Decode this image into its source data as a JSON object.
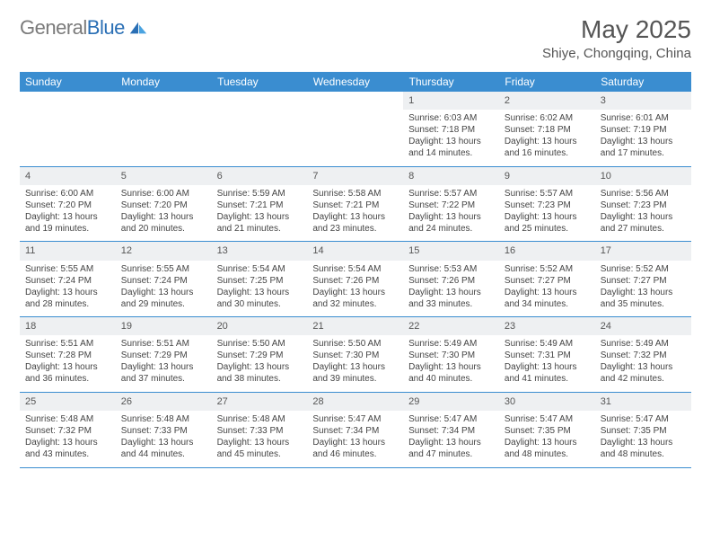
{
  "brand": {
    "text_gray": "General",
    "text_blue": "Blue"
  },
  "title": "May 2025",
  "subtitle": "Shiye, Chongqing, China",
  "colors": {
    "header_bg": "#3a8dd0",
    "header_text": "#ffffff",
    "daynum_bg": "#eef0f2",
    "border": "#3a8dd0",
    "text": "#444444",
    "logo_gray": "#7a7a7a",
    "logo_blue": "#2a6fb5"
  },
  "weekdays": [
    "Sunday",
    "Monday",
    "Tuesday",
    "Wednesday",
    "Thursday",
    "Friday",
    "Saturday"
  ],
  "leading_blanks": 4,
  "days": [
    {
      "n": 1,
      "sr": "6:03 AM",
      "ss": "7:18 PM",
      "dl": "13 hours and 14 minutes."
    },
    {
      "n": 2,
      "sr": "6:02 AM",
      "ss": "7:18 PM",
      "dl": "13 hours and 16 minutes."
    },
    {
      "n": 3,
      "sr": "6:01 AM",
      "ss": "7:19 PM",
      "dl": "13 hours and 17 minutes."
    },
    {
      "n": 4,
      "sr": "6:00 AM",
      "ss": "7:20 PM",
      "dl": "13 hours and 19 minutes."
    },
    {
      "n": 5,
      "sr": "6:00 AM",
      "ss": "7:20 PM",
      "dl": "13 hours and 20 minutes."
    },
    {
      "n": 6,
      "sr": "5:59 AM",
      "ss": "7:21 PM",
      "dl": "13 hours and 21 minutes."
    },
    {
      "n": 7,
      "sr": "5:58 AM",
      "ss": "7:21 PM",
      "dl": "13 hours and 23 minutes."
    },
    {
      "n": 8,
      "sr": "5:57 AM",
      "ss": "7:22 PM",
      "dl": "13 hours and 24 minutes."
    },
    {
      "n": 9,
      "sr": "5:57 AM",
      "ss": "7:23 PM",
      "dl": "13 hours and 25 minutes."
    },
    {
      "n": 10,
      "sr": "5:56 AM",
      "ss": "7:23 PM",
      "dl": "13 hours and 27 minutes."
    },
    {
      "n": 11,
      "sr": "5:55 AM",
      "ss": "7:24 PM",
      "dl": "13 hours and 28 minutes."
    },
    {
      "n": 12,
      "sr": "5:55 AM",
      "ss": "7:24 PM",
      "dl": "13 hours and 29 minutes."
    },
    {
      "n": 13,
      "sr": "5:54 AM",
      "ss": "7:25 PM",
      "dl": "13 hours and 30 minutes."
    },
    {
      "n": 14,
      "sr": "5:54 AM",
      "ss": "7:26 PM",
      "dl": "13 hours and 32 minutes."
    },
    {
      "n": 15,
      "sr": "5:53 AM",
      "ss": "7:26 PM",
      "dl": "13 hours and 33 minutes."
    },
    {
      "n": 16,
      "sr": "5:52 AM",
      "ss": "7:27 PM",
      "dl": "13 hours and 34 minutes."
    },
    {
      "n": 17,
      "sr": "5:52 AM",
      "ss": "7:27 PM",
      "dl": "13 hours and 35 minutes."
    },
    {
      "n": 18,
      "sr": "5:51 AM",
      "ss": "7:28 PM",
      "dl": "13 hours and 36 minutes."
    },
    {
      "n": 19,
      "sr": "5:51 AM",
      "ss": "7:29 PM",
      "dl": "13 hours and 37 minutes."
    },
    {
      "n": 20,
      "sr": "5:50 AM",
      "ss": "7:29 PM",
      "dl": "13 hours and 38 minutes."
    },
    {
      "n": 21,
      "sr": "5:50 AM",
      "ss": "7:30 PM",
      "dl": "13 hours and 39 minutes."
    },
    {
      "n": 22,
      "sr": "5:49 AM",
      "ss": "7:30 PM",
      "dl": "13 hours and 40 minutes."
    },
    {
      "n": 23,
      "sr": "5:49 AM",
      "ss": "7:31 PM",
      "dl": "13 hours and 41 minutes."
    },
    {
      "n": 24,
      "sr": "5:49 AM",
      "ss": "7:32 PM",
      "dl": "13 hours and 42 minutes."
    },
    {
      "n": 25,
      "sr": "5:48 AM",
      "ss": "7:32 PM",
      "dl": "13 hours and 43 minutes."
    },
    {
      "n": 26,
      "sr": "5:48 AM",
      "ss": "7:33 PM",
      "dl": "13 hours and 44 minutes."
    },
    {
      "n": 27,
      "sr": "5:48 AM",
      "ss": "7:33 PM",
      "dl": "13 hours and 45 minutes."
    },
    {
      "n": 28,
      "sr": "5:47 AM",
      "ss": "7:34 PM",
      "dl": "13 hours and 46 minutes."
    },
    {
      "n": 29,
      "sr": "5:47 AM",
      "ss": "7:34 PM",
      "dl": "13 hours and 47 minutes."
    },
    {
      "n": 30,
      "sr": "5:47 AM",
      "ss": "7:35 PM",
      "dl": "13 hours and 48 minutes."
    },
    {
      "n": 31,
      "sr": "5:47 AM",
      "ss": "7:35 PM",
      "dl": "13 hours and 48 minutes."
    }
  ],
  "labels": {
    "sunrise": "Sunrise:",
    "sunset": "Sunset:",
    "daylight": "Daylight:"
  }
}
